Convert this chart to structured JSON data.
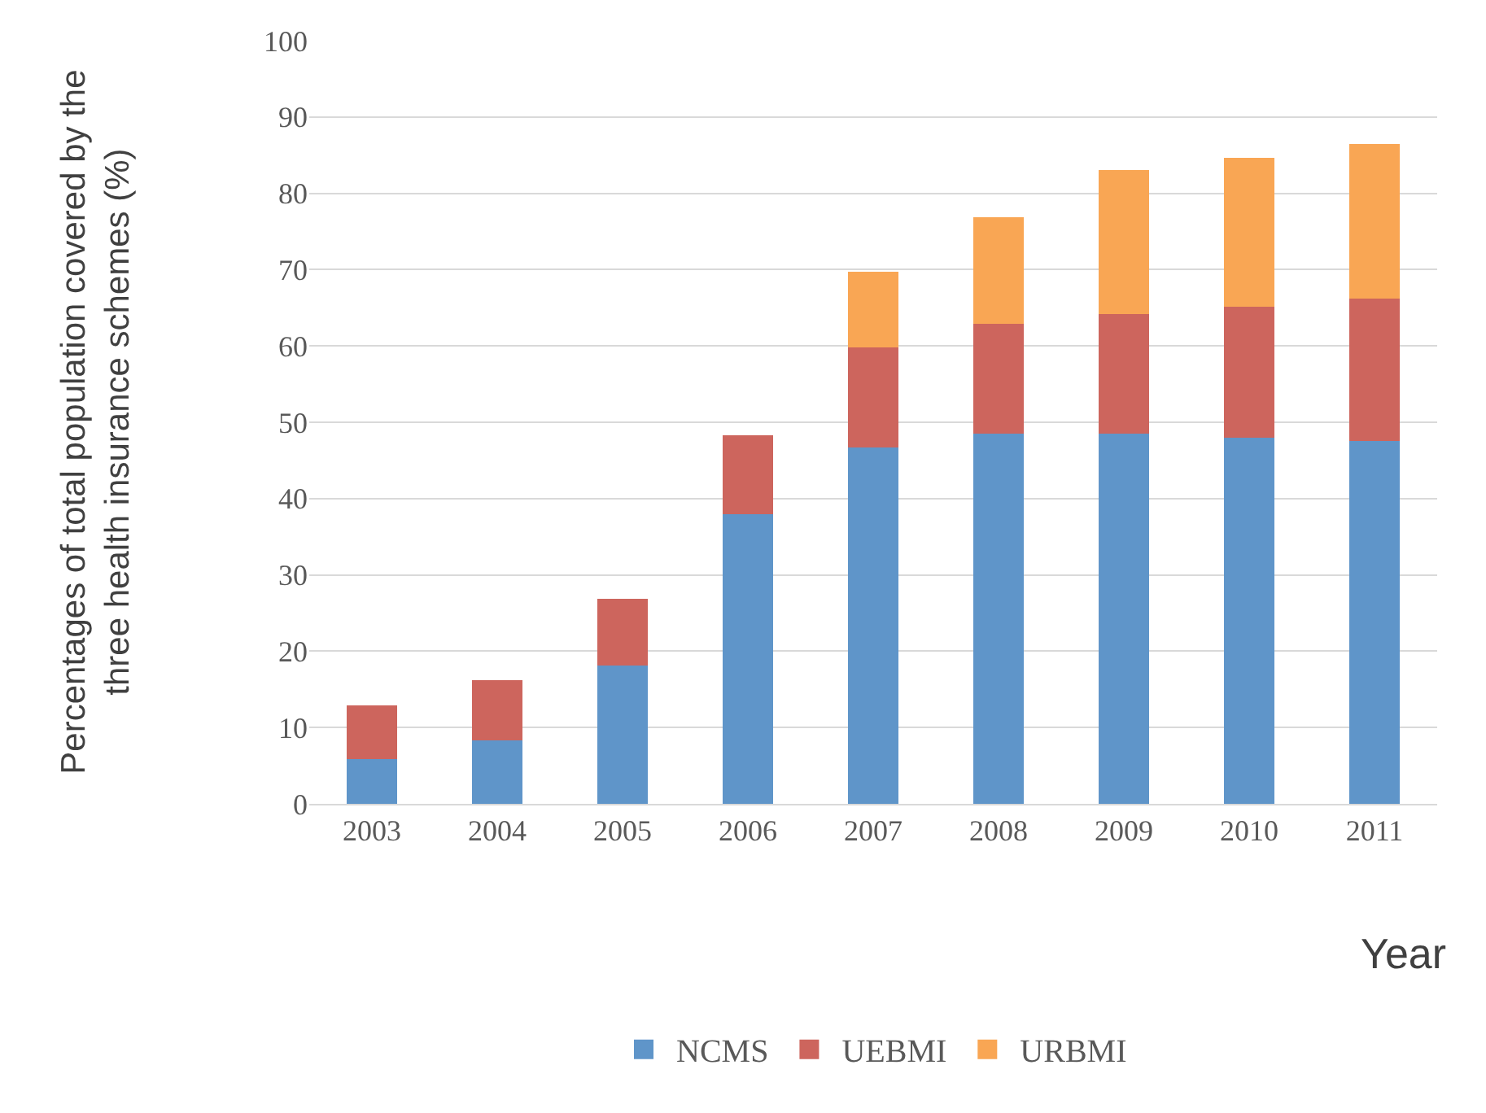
{
  "chart_data": {
    "type": "bar",
    "stacked": true,
    "xlabel": "Year",
    "ylabel": "Percentages of total population covered by the three health insurance schemes (%)",
    "categories": [
      "2003",
      "2004",
      "2005",
      "2006",
      "2007",
      "2008",
      "2009",
      "2010",
      "2011"
    ],
    "series": [
      {
        "name": "NCMS",
        "color": "#5f95c9",
        "values": [
          5.9,
          8.3,
          18.1,
          38.0,
          46.7,
          48.5,
          48.5,
          48.0,
          47.6
        ]
      },
      {
        "name": "UEBMI",
        "color": "#cd655d",
        "values": [
          7.0,
          7.9,
          8.8,
          10.3,
          13.1,
          14.4,
          15.7,
          17.1,
          18.6
        ]
      },
      {
        "name": "URBMI",
        "color": "#f9a654",
        "values": [
          null,
          null,
          null,
          null,
          9.9,
          14.0,
          18.8,
          19.6,
          20.3
        ]
      }
    ],
    "ylim": [
      0,
      100
    ],
    "yticks": [
      0,
      10,
      20,
      30,
      40,
      50,
      60,
      70,
      80,
      90,
      100
    ],
    "grid": "y",
    "legend": "bottom"
  }
}
